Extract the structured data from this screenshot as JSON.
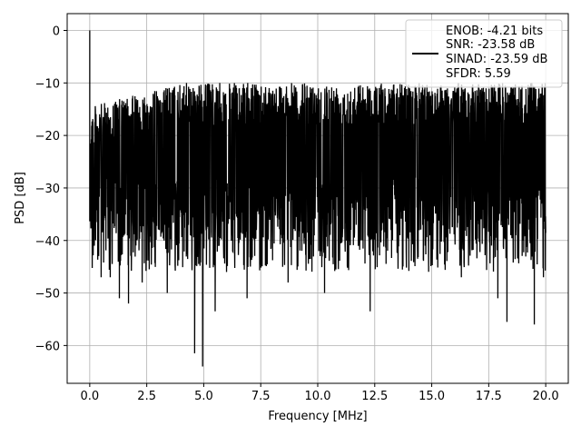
{
  "chart_data": {
    "type": "line",
    "title": "",
    "xlabel": "Frequency [MHz]",
    "ylabel": "PSD [dB]",
    "xlim": [
      -0.99,
      20.99
    ],
    "ylim": [
      -67.2,
      3.2
    ],
    "xticks": [
      0.0,
      2.5,
      5.0,
      7.5,
      10.0,
      12.5,
      15.0,
      17.5,
      20.0
    ],
    "xtick_labels": [
      "0.0",
      "2.5",
      "5.0",
      "7.5",
      "10.0",
      "12.5",
      "15.0",
      "17.5",
      "20.0"
    ],
    "yticks": [
      0,
      -10,
      -20,
      -30,
      -40,
      -50,
      -60
    ],
    "ytick_labels": [
      "0",
      "−10",
      "−20",
      "−30",
      "−40",
      "−50",
      "−60"
    ],
    "grid": true,
    "legend_position": "top-right",
    "series": [
      {
        "name": "ENOB: -4.21 bits",
        "color": "#000000",
        "x_range": [
          0,
          20
        ],
        "noise_floor_band": [
          -40,
          -10
        ],
        "peak": {
          "x": 0.0,
          "y": 0.0
        },
        "deep_dips": [
          {
            "x": 0.2,
            "y": -41
          },
          {
            "x": 0.5,
            "y": -47
          },
          {
            "x": 0.9,
            "y": -47
          },
          {
            "x": 1.3,
            "y": -51
          },
          {
            "x": 1.7,
            "y": -52
          },
          {
            "x": 2.3,
            "y": -48
          },
          {
            "x": 3.4,
            "y": -50
          },
          {
            "x": 4.6,
            "y": -61.5
          },
          {
            "x": 4.95,
            "y": -64
          },
          {
            "x": 5.5,
            "y": -53.5
          },
          {
            "x": 6.0,
            "y": -46
          },
          {
            "x": 6.9,
            "y": -51
          },
          {
            "x": 8.7,
            "y": -48
          },
          {
            "x": 10.3,
            "y": -50
          },
          {
            "x": 12.3,
            "y": -53.5
          },
          {
            "x": 16.3,
            "y": -47
          },
          {
            "x": 17.9,
            "y": -51
          },
          {
            "x": 18.3,
            "y": -55.5
          },
          {
            "x": 19.5,
            "y": -56
          },
          {
            "x": 19.9,
            "y": -47
          }
        ]
      }
    ],
    "legend_entries": [
      "ENOB: -4.21 bits",
      "SNR: -23.58 dB",
      "SINAD: -23.59 dB",
      "SFDR: 5.59"
    ]
  }
}
